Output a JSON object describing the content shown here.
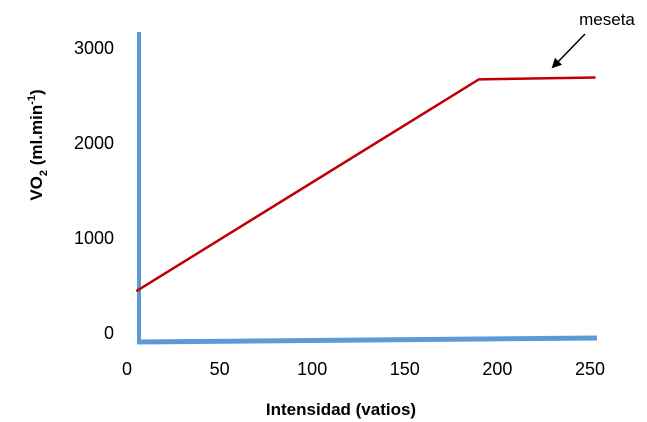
{
  "chart_data": {
    "type": "line",
    "title": "",
    "xlabel": "Intensidad (vatios)",
    "ylabel": {
      "main": "VO",
      "sub": "2",
      "unit_start": " (ml.min",
      "sup": "-1",
      "unit_end": ")"
    },
    "xlim": [
      0,
      250
    ],
    "ylim": [
      0,
      3000
    ],
    "x_ticks": [
      "0",
      "50",
      "100",
      "150",
      "200",
      "250"
    ],
    "y_ticks": [
      "0",
      "1000",
      "2000",
      "3000"
    ],
    "grid": false,
    "series": [
      {
        "color": "#c00000",
        "points": [
          [
            5,
            440
          ],
          [
            190,
            2670
          ],
          [
            253,
            2690
          ]
        ]
      }
    ],
    "annotations": [
      {
        "text": "meseta",
        "points_to": [
          225,
          2700
        ]
      }
    ],
    "axis_color": "#5b9bd5",
    "line_color": "#c00000"
  }
}
